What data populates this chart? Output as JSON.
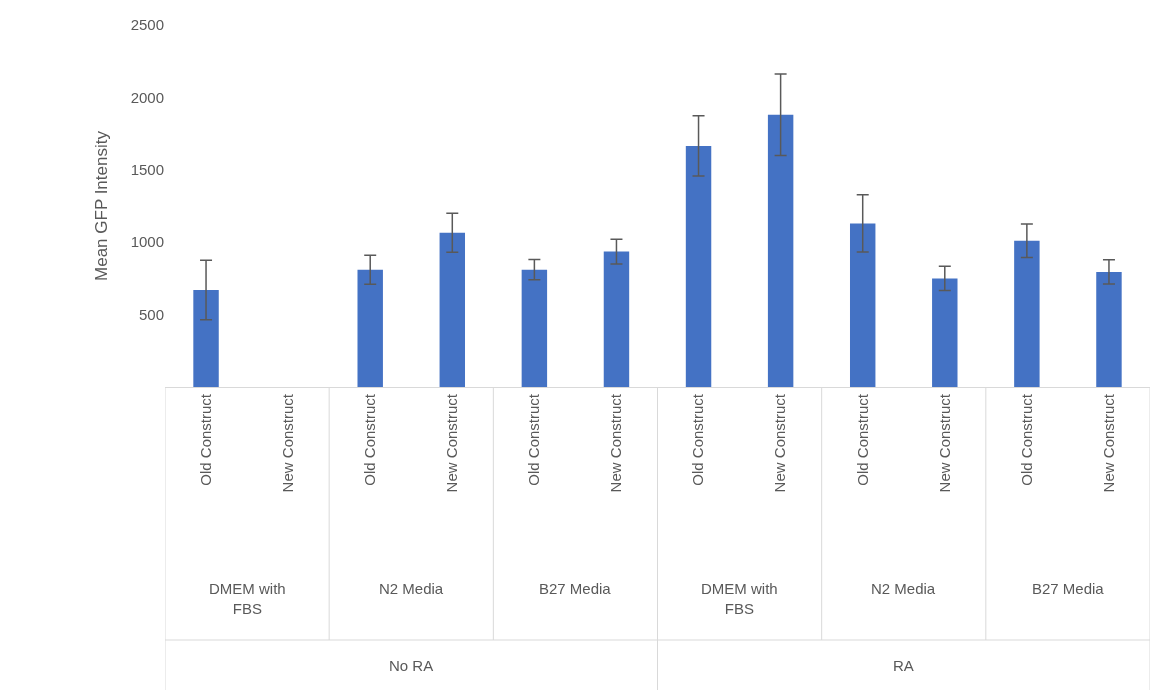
{
  "chart_data": {
    "type": "bar",
    "ylabel": "Mean GFP Intensity",
    "categories": [
      "Old Construct",
      "New Construct",
      "Old Construct",
      "New Construct",
      "Old Construct",
      "New Construct",
      "Old Construct",
      "New Construct",
      "Old Construct",
      "New Construct",
      "Old Construct",
      "New Construct"
    ],
    "values": [
      670,
      null,
      810,
      1065,
      810,
      935,
      1665,
      1880,
      1130,
      750,
      1010,
      795
    ],
    "errors": [
      205,
      null,
      100,
      135,
      70,
      85,
      208,
      282,
      198,
      84,
      116,
      84
    ],
    "color": "#4472c4",
    "ylim": [
      0,
      2500
    ],
    "yticks": [
      500,
      1000,
      1500,
      2000,
      2500
    ],
    "annotations": [
      "DMEM with FBS",
      "N2 Media",
      "B27 Media",
      "DMEM with FBS",
      "N2 Media",
      "B27 Media",
      "No RA",
      "RA"
    ]
  }
}
